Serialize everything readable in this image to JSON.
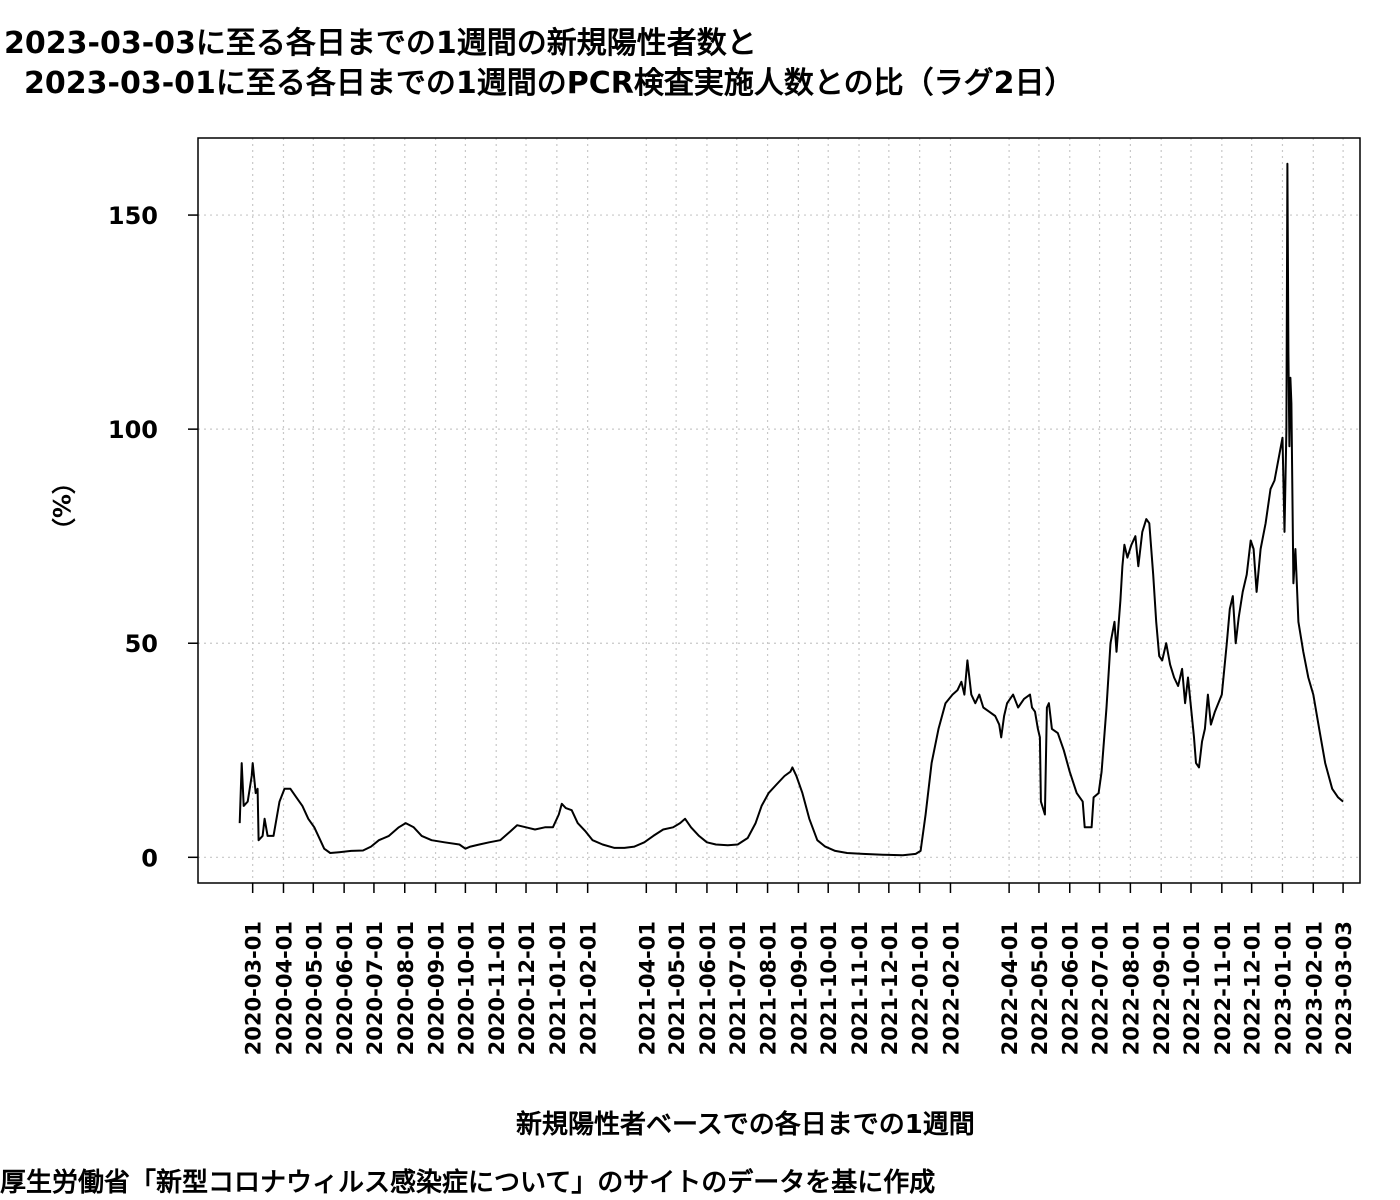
{
  "chart_data": {
    "type": "line",
    "title_line1": "2023-03-03に至る各日までの1週間の新規陽性者数と",
    "title_line2": "2023-03-01に至る各日までの1週間のPCR検査実施人数との比（ラグ2日）",
    "xlabel": "新規陽性者ベースでの各日までの1週間",
    "ylabel": "（%）",
    "source_note": "厚生労働省「新型コロナウィルス感染症について」のサイトのデータを基に作成",
    "ylim": [
      -6,
      168
    ],
    "yticks": [
      0,
      50,
      100,
      150
    ],
    "xlim": [
      "2020-01-06",
      "2023-03-20"
    ],
    "grid": true,
    "x_tick_labels": [
      "2020-03-01",
      "2020-04-01",
      "2020-05-01",
      "2020-06-01",
      "2020-07-01",
      "2020-08-01",
      "2020-09-01",
      "2020-10-01",
      "2020-11-01",
      "2020-12-01",
      "2021-01-01",
      "2021-02-01",
      "2021-04-01",
      "2021-05-01",
      "2021-06-01",
      "2021-07-01",
      "2021-08-01",
      "2021-09-01",
      "2021-10-01",
      "2021-11-01",
      "2021-12-01",
      "2022-01-01",
      "2022-02-01",
      "2022-04-01",
      "2022-05-01",
      "2022-06-01",
      "2022-07-01",
      "2022-08-01",
      "2022-09-01",
      "2022-10-01",
      "2022-11-01",
      "2022-12-01",
      "2023-01-01",
      "2023-02-01",
      "2023-03-03"
    ],
    "series": [
      {
        "color": "#000000",
        "points": [
          [
            "2020-02-17",
            8
          ],
          [
            "2020-02-19",
            22
          ],
          [
            "2020-02-21",
            12
          ],
          [
            "2020-02-25",
            13
          ],
          [
            "2020-02-29",
            19
          ],
          [
            "2020-03-01",
            22
          ],
          [
            "2020-03-04",
            15
          ],
          [
            "2020-03-06",
            16
          ],
          [
            "2020-03-07",
            4
          ],
          [
            "2020-03-11",
            5
          ],
          [
            "2020-03-13",
            9
          ],
          [
            "2020-03-16",
            5
          ],
          [
            "2020-03-22",
            5
          ],
          [
            "2020-03-28",
            13
          ],
          [
            "2020-04-02",
            16
          ],
          [
            "2020-04-08",
            16
          ],
          [
            "2020-04-14",
            14
          ],
          [
            "2020-04-20",
            12
          ],
          [
            "2020-04-26",
            9
          ],
          [
            "2020-05-02",
            7
          ],
          [
            "2020-05-08",
            4
          ],
          [
            "2020-05-12",
            2
          ],
          [
            "2020-05-18",
            1
          ],
          [
            "2020-05-27",
            1.2
          ],
          [
            "2020-06-08",
            1.5
          ],
          [
            "2020-06-20",
            1.6
          ],
          [
            "2020-06-28",
            2.5
          ],
          [
            "2020-07-06",
            4
          ],
          [
            "2020-07-16",
            5
          ],
          [
            "2020-07-26",
            7
          ],
          [
            "2020-08-02",
            8
          ],
          [
            "2020-08-10",
            7
          ],
          [
            "2020-08-18",
            5
          ],
          [
            "2020-08-28",
            4
          ],
          [
            "2020-09-10",
            3.5
          ],
          [
            "2020-09-25",
            3
          ],
          [
            "2020-10-01",
            2
          ],
          [
            "2020-10-06",
            2.5
          ],
          [
            "2020-10-15",
            3
          ],
          [
            "2020-10-25",
            3.5
          ],
          [
            "2020-11-05",
            4
          ],
          [
            "2020-11-15",
            6
          ],
          [
            "2020-11-22",
            7.5
          ],
          [
            "2020-12-01",
            7
          ],
          [
            "2020-12-10",
            6.5
          ],
          [
            "2020-12-20",
            7
          ],
          [
            "2020-12-28",
            7
          ],
          [
            "2021-01-03",
            10
          ],
          [
            "2021-01-06",
            12.5
          ],
          [
            "2021-01-10",
            11.5
          ],
          [
            "2021-01-16",
            11
          ],
          [
            "2021-01-22",
            8
          ],
          [
            "2021-01-30",
            6
          ],
          [
            "2021-02-06",
            4
          ],
          [
            "2021-02-16",
            3
          ],
          [
            "2021-02-28",
            2.2
          ],
          [
            "2021-03-10",
            2.2
          ],
          [
            "2021-03-20",
            2.5
          ],
          [
            "2021-03-30",
            3.5
          ],
          [
            "2021-04-08",
            5
          ],
          [
            "2021-04-18",
            6.5
          ],
          [
            "2021-04-28",
            7
          ],
          [
            "2021-05-05",
            8
          ],
          [
            "2021-05-10",
            9
          ],
          [
            "2021-05-16",
            7
          ],
          [
            "2021-05-24",
            5
          ],
          [
            "2021-06-01",
            3.5
          ],
          [
            "2021-06-10",
            3
          ],
          [
            "2021-06-22",
            2.8
          ],
          [
            "2021-07-02",
            3
          ],
          [
            "2021-07-12",
            4.5
          ],
          [
            "2021-07-20",
            8
          ],
          [
            "2021-07-26",
            12
          ],
          [
            "2021-08-02",
            15
          ],
          [
            "2021-08-10",
            17
          ],
          [
            "2021-08-18",
            19
          ],
          [
            "2021-08-24",
            20
          ],
          [
            "2021-08-26",
            21
          ],
          [
            "2021-08-30",
            19
          ],
          [
            "2021-09-05",
            15
          ],
          [
            "2021-09-12",
            9
          ],
          [
            "2021-09-20",
            4
          ],
          [
            "2021-09-28",
            2.5
          ],
          [
            "2021-10-08",
            1.5
          ],
          [
            "2021-10-20",
            1
          ],
          [
            "2021-11-05",
            0.8
          ],
          [
            "2021-11-25",
            0.6
          ],
          [
            "2021-12-15",
            0.5
          ],
          [
            "2021-12-28",
            0.8
          ],
          [
            "2022-01-02",
            1.5
          ],
          [
            "2022-01-07",
            10
          ],
          [
            "2022-01-13",
            22
          ],
          [
            "2022-01-20",
            30
          ],
          [
            "2022-01-27",
            36
          ],
          [
            "2022-02-03",
            38
          ],
          [
            "2022-02-08",
            39
          ],
          [
            "2022-02-12",
            41
          ],
          [
            "2022-02-15",
            38
          ],
          [
            "2022-02-18",
            46
          ],
          [
            "2022-02-22",
            38
          ],
          [
            "2022-02-26",
            36
          ],
          [
            "2022-03-02",
            38
          ],
          [
            "2022-03-06",
            35
          ],
          [
            "2022-03-12",
            34
          ],
          [
            "2022-03-18",
            33
          ],
          [
            "2022-03-22",
            31
          ],
          [
            "2022-03-24",
            28
          ],
          [
            "2022-03-27",
            33
          ],
          [
            "2022-03-30",
            36
          ],
          [
            "2022-04-05",
            38
          ],
          [
            "2022-04-10",
            35
          ],
          [
            "2022-04-16",
            37
          ],
          [
            "2022-04-22",
            38
          ],
          [
            "2022-04-24",
            35
          ],
          [
            "2022-04-27",
            34
          ],
          [
            "2022-04-30",
            30
          ],
          [
            "2022-05-02",
            28
          ],
          [
            "2022-05-03",
            13
          ],
          [
            "2022-05-07",
            10
          ],
          [
            "2022-05-09",
            35
          ],
          [
            "2022-05-11",
            36
          ],
          [
            "2022-05-14",
            30
          ],
          [
            "2022-05-20",
            29
          ],
          [
            "2022-05-26",
            25
          ],
          [
            "2022-06-01",
            20
          ],
          [
            "2022-06-08",
            15
          ],
          [
            "2022-06-14",
            13
          ],
          [
            "2022-06-16",
            7
          ],
          [
            "2022-06-23",
            7
          ],
          [
            "2022-06-25",
            14
          ],
          [
            "2022-06-30",
            15
          ],
          [
            "2022-07-03",
            20
          ],
          [
            "2022-07-08",
            35
          ],
          [
            "2022-07-12",
            50
          ],
          [
            "2022-07-16",
            55
          ],
          [
            "2022-07-18",
            48
          ],
          [
            "2022-07-22",
            60
          ],
          [
            "2022-07-24",
            68
          ],
          [
            "2022-07-26",
            73
          ],
          [
            "2022-07-29",
            70
          ],
          [
            "2022-08-02",
            73
          ],
          [
            "2022-08-06",
            75
          ],
          [
            "2022-08-09",
            68
          ],
          [
            "2022-08-13",
            76
          ],
          [
            "2022-08-17",
            79
          ],
          [
            "2022-08-20",
            78
          ],
          [
            "2022-08-24",
            66
          ],
          [
            "2022-08-27",
            55
          ],
          [
            "2022-08-30",
            47
          ],
          [
            "2022-09-02",
            46
          ],
          [
            "2022-09-06",
            50
          ],
          [
            "2022-09-10",
            45
          ],
          [
            "2022-09-14",
            42
          ],
          [
            "2022-09-18",
            40
          ],
          [
            "2022-09-22",
            44
          ],
          [
            "2022-09-25",
            36
          ],
          [
            "2022-09-28",
            42
          ],
          [
            "2022-10-01",
            35
          ],
          [
            "2022-10-04",
            28
          ],
          [
            "2022-10-06",
            22
          ],
          [
            "2022-10-09",
            21
          ],
          [
            "2022-10-12",
            27
          ],
          [
            "2022-10-15",
            30
          ],
          [
            "2022-10-18",
            38
          ],
          [
            "2022-10-21",
            31
          ],
          [
            "2022-10-25",
            34
          ],
          [
            "2022-11-01",
            38
          ],
          [
            "2022-11-06",
            50
          ],
          [
            "2022-11-09",
            58
          ],
          [
            "2022-11-12",
            61
          ],
          [
            "2022-11-15",
            50
          ],
          [
            "2022-11-18",
            56
          ],
          [
            "2022-11-22",
            62
          ],
          [
            "2022-11-26",
            66
          ],
          [
            "2022-11-30",
            74
          ],
          [
            "2022-12-03",
            72
          ],
          [
            "2022-12-06",
            62
          ],
          [
            "2022-12-10",
            72
          ],
          [
            "2022-12-15",
            78
          ],
          [
            "2022-12-20",
            86
          ],
          [
            "2022-12-24",
            88
          ],
          [
            "2022-12-28",
            93
          ],
          [
            "2023-01-01",
            98
          ],
          [
            "2023-01-03",
            76
          ],
          [
            "2023-01-05",
            100
          ],
          [
            "2023-01-06",
            162
          ],
          [
            "2023-01-07",
            118
          ],
          [
            "2023-01-08",
            96
          ],
          [
            "2023-01-09",
            112
          ],
          [
            "2023-01-10",
            106
          ],
          [
            "2023-01-12",
            64
          ],
          [
            "2023-01-14",
            72
          ],
          [
            "2023-01-17",
            55
          ],
          [
            "2023-01-22",
            48
          ],
          [
            "2023-01-27",
            42
          ],
          [
            "2023-02-01",
            38
          ],
          [
            "2023-02-07",
            30
          ],
          [
            "2023-02-13",
            22
          ],
          [
            "2023-02-20",
            16
          ],
          [
            "2023-02-26",
            14
          ],
          [
            "2023-03-03",
            13
          ]
        ]
      }
    ]
  }
}
